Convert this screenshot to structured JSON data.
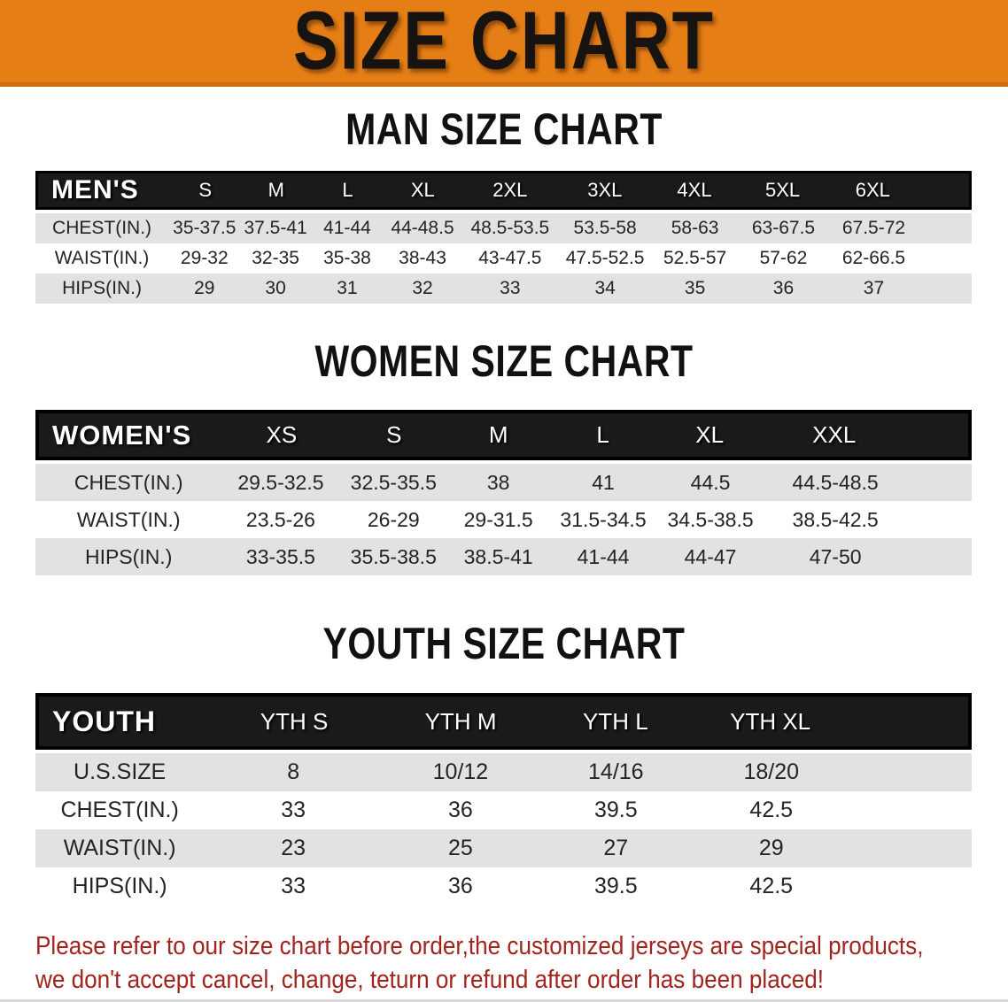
{
  "banner": {
    "title": "SIZE CHART"
  },
  "sections": [
    {
      "heading": "MAN SIZE CHART",
      "table": {
        "group_label": "MEN'S",
        "columns": [
          "S",
          "M",
          "L",
          "XL",
          "2XL",
          "3XL",
          "4XL",
          "5XL",
          "6XL"
        ],
        "rows": [
          {
            "label": "CHEST(IN.)",
            "values": [
              "35-37.5",
              "37.5-41",
              "41-44",
              "44-48.5",
              "48.5-53.5",
              "53.5-58",
              "58-63",
              "63-67.5",
              "67.5-72"
            ]
          },
          {
            "label": "WAIST(IN.)",
            "values": [
              "29-32",
              "32-35",
              "35-38",
              "38-43",
              "43-47.5",
              "47.5-52.5",
              "52.5-57",
              "57-62",
              "62-66.5"
            ]
          },
          {
            "label": "HIPS(IN.)",
            "values": [
              "29",
              "30",
              "31",
              "32",
              "33",
              "34",
              "35",
              "36",
              "37"
            ]
          }
        ]
      }
    },
    {
      "heading": "WOMEN SIZE CHART",
      "table": {
        "group_label": "WOMEN'S",
        "columns": [
          "XS",
          "S",
          "M",
          "L",
          "XL",
          "XXL"
        ],
        "rows": [
          {
            "label": "CHEST(IN.)",
            "values": [
              "29.5-32.5",
              "32.5-35.5",
              "38",
              "41",
              "44.5",
              "44.5-48.5"
            ]
          },
          {
            "label": "WAIST(IN.)",
            "values": [
              "23.5-26",
              "26-29",
              "29-31.5",
              "31.5-34.5",
              "34.5-38.5",
              "38.5-42.5"
            ]
          },
          {
            "label": "HIPS(IN.)",
            "values": [
              "33-35.5",
              "35.5-38.5",
              "38.5-41",
              "41-44",
              "44-47",
              "47-50"
            ]
          }
        ]
      }
    },
    {
      "heading": "YOUTH SIZE CHART",
      "table": {
        "group_label": "YOUTH",
        "columns": [
          "YTH S",
          "YTH M",
          "YTH L",
          "YTH XL"
        ],
        "rows": [
          {
            "label": "U.S.SIZE",
            "values": [
              "8",
              "10/12",
              "14/16",
              "18/20"
            ]
          },
          {
            "label": "CHEST(IN.)",
            "values": [
              "33",
              "36",
              "39.5",
              "42.5"
            ]
          },
          {
            "label": "WAIST(IN.)",
            "values": [
              "23",
              "25",
              "27",
              "29"
            ]
          },
          {
            "label": "HIPS(IN.)",
            "values": [
              "33",
              "36",
              "39.5",
              "42.5"
            ]
          }
        ]
      }
    }
  ],
  "disclaimer": {
    "line1": "Please refer to our size chart before order,the customized jerseys are special products,",
    "line2": "we don't accept cancel, change, teturn or refund after order has been placed!"
  },
  "colors": {
    "banner_bg": "#e67e16",
    "banner_edge": "#cf6e10",
    "banner_text": "#171310",
    "bar_bg": "#1a1a1a",
    "bar_border": "#000000",
    "bar_text": "#ffffff",
    "row_gray": "#e2e2e2",
    "body_text": "#242424",
    "heading_text": "#111111",
    "disclaimer_text": "#a1241e"
  }
}
